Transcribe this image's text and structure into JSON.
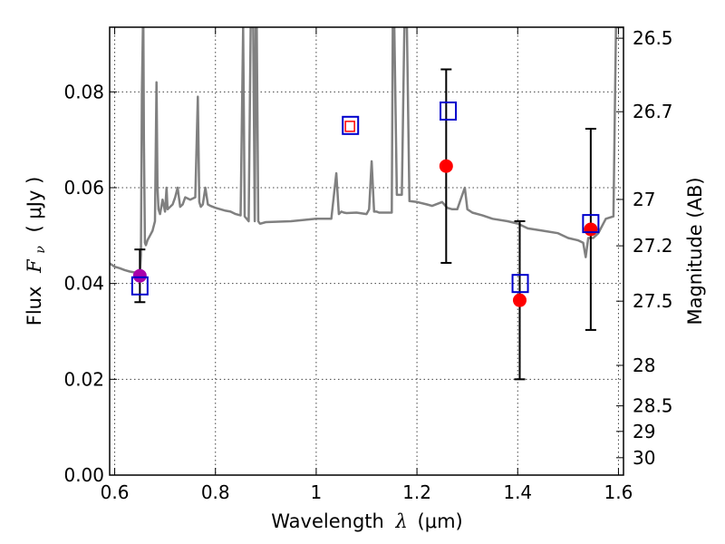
{
  "chart_data": {
    "type": "scatter",
    "xlabel_prefix": "Wavelength",
    "xlabel_symbol": "λ",
    "xlabel_unit": "(μm)",
    "ylabel_prefix": "Flux",
    "ylabel_symbol": "F",
    "ylabel_subscript": "ν",
    "ylabel_unit": "( μJy )",
    "y2label": "Magnitude (AB)",
    "xlim": [
      0.59,
      1.61
    ],
    "ylim": [
      0.0,
      0.0935
    ],
    "grid": true,
    "x_ticks": [
      0.6,
      0.8,
      1.0,
      1.2,
      1.4,
      1.6
    ],
    "x_tick_labels": [
      "0.6",
      "0.8",
      "1",
      "1.2",
      "1.4",
      "1.6"
    ],
    "y_ticks": [
      0.0,
      0.02,
      0.04,
      0.06,
      0.08
    ],
    "y_tick_labels": [
      "0.00",
      "0.02",
      "0.04",
      "0.06",
      "0.08"
    ],
    "y2_ticks": [
      26.5,
      26.7,
      27,
      27.2,
      27.5,
      28,
      28.5,
      29,
      30
    ],
    "y2_tick_labels": [
      "26.5",
      "26.7",
      "27",
      "27.2",
      "27.5",
      "28",
      "28.5",
      "29",
      "30"
    ],
    "colors": {
      "model": "#808080",
      "observed": "#ff0000",
      "model_photometry": "#0000cc",
      "special": "#aa00aa",
      "errorbar": "#000000",
      "grid": "#444444"
    },
    "model_spectrum": {
      "x": [
        0.59,
        0.6,
        0.61,
        0.62,
        0.63,
        0.64,
        0.65,
        0.652,
        0.654,
        0.656,
        0.657,
        0.658,
        0.66,
        0.662,
        0.665,
        0.67,
        0.675,
        0.68,
        0.683,
        0.685,
        0.687,
        0.69,
        0.695,
        0.7,
        0.703,
        0.705,
        0.71,
        0.715,
        0.72,
        0.725,
        0.73,
        0.735,
        0.74,
        0.75,
        0.76,
        0.765,
        0.768,
        0.771,
        0.775,
        0.78,
        0.785,
        0.79,
        0.8,
        0.81,
        0.82,
        0.83,
        0.84,
        0.85,
        0.855,
        0.858,
        0.862,
        0.866,
        0.87,
        0.875,
        0.878,
        0.88,
        0.882,
        0.885,
        0.888,
        0.89,
        0.9,
        0.95,
        1.0,
        1.03,
        1.04,
        1.045,
        1.05,
        1.055,
        1.06,
        1.08,
        1.1,
        1.105,
        1.11,
        1.115,
        1.12,
        1.125,
        1.15,
        1.152,
        1.155,
        1.16,
        1.17,
        1.175,
        1.18,
        1.185,
        1.2,
        1.22,
        1.23,
        1.25,
        1.26,
        1.27,
        1.28,
        1.29,
        1.295,
        1.3,
        1.31,
        1.33,
        1.35,
        1.38,
        1.4,
        1.42,
        1.45,
        1.48,
        1.5,
        1.52,
        1.53,
        1.535,
        1.54,
        1.55,
        1.56,
        1.575,
        1.59,
        1.595,
        1.6,
        1.605,
        1.61
      ],
      "y": [
        0.0442,
        0.0435,
        0.0432,
        0.0428,
        0.0425,
        0.0423,
        0.042,
        0.046,
        0.08,
        0.0935,
        0.0935,
        0.07,
        0.0485,
        0.048,
        0.049,
        0.05,
        0.051,
        0.053,
        0.082,
        0.06,
        0.0555,
        0.0545,
        0.0575,
        0.055,
        0.06,
        0.0555,
        0.056,
        0.0565,
        0.058,
        0.06,
        0.056,
        0.0565,
        0.058,
        0.0575,
        0.058,
        0.079,
        0.057,
        0.056,
        0.0565,
        0.06,
        0.0565,
        0.0562,
        0.0558,
        0.0555,
        0.0552,
        0.055,
        0.0545,
        0.0542,
        0.0935,
        0.054,
        0.0535,
        0.053,
        0.0935,
        0.0935,
        0.053,
        0.0935,
        0.0935,
        0.053,
        0.0525,
        0.0525,
        0.0528,
        0.053,
        0.0535,
        0.0535,
        0.063,
        0.0545,
        0.055,
        0.0548,
        0.0547,
        0.0548,
        0.0545,
        0.0555,
        0.0655,
        0.055,
        0.055,
        0.0548,
        0.0548,
        0.0935,
        0.0935,
        0.0585,
        0.0585,
        0.0935,
        0.0935,
        0.0572,
        0.057,
        0.0565,
        0.0562,
        0.057,
        0.0558,
        0.0555,
        0.0555,
        0.0585,
        0.06,
        0.0555,
        0.0548,
        0.0542,
        0.0535,
        0.053,
        0.0525,
        0.0515,
        0.051,
        0.0505,
        0.0495,
        0.049,
        0.0485,
        0.0455,
        0.0495,
        0.0495,
        0.0505,
        0.0535,
        0.054,
        0.0935,
        0.0935,
        0.0935,
        0.0935
      ],
      "width": 2.5
    },
    "observed_points": [
      {
        "x": 1.258,
        "y": 0.0645,
        "err": 0.0202
      },
      {
        "x": 1.404,
        "y": 0.0365,
        "err": 0.0165
      },
      {
        "x": 1.545,
        "y": 0.0513,
        "err": 0.021
      }
    ],
    "model_photometry_points": [
      {
        "x": 0.65,
        "y": 0.0395
      },
      {
        "x": 1.068,
        "y": 0.073
      },
      {
        "x": 1.262,
        "y": 0.076
      },
      {
        "x": 1.405,
        "y": 0.04
      },
      {
        "x": 1.545,
        "y": 0.0525
      }
    ],
    "special_point": {
      "x": 0.65,
      "y": 0.0416,
      "err": 0.0055
    },
    "inner_point": {
      "x": 1.067,
      "y": 0.0728
    }
  }
}
